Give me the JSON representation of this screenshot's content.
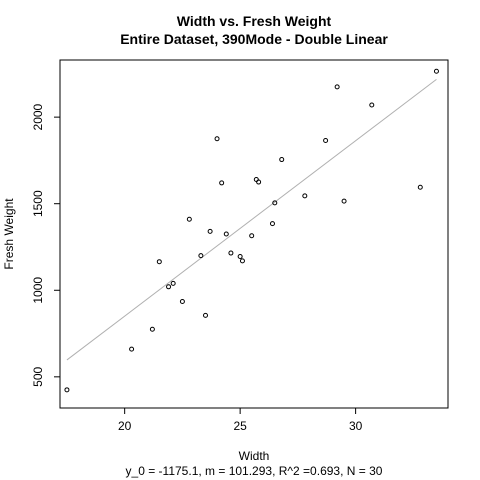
{
  "chart_data": {
    "type": "scatter",
    "title": "Width vs. Fresh Weight",
    "subtitle": "Entire Dataset, 390Mode - Double Linear",
    "xlabel": "Width",
    "ylabel": "Fresh Weight",
    "footer": "y_0 = -1175.1, m = 101.293, R^2 =0.693, N = 30",
    "xlim": [
      17.2,
      34.0
    ],
    "ylim": [
      320,
      2330
    ],
    "x_ticks": [
      20,
      25,
      30
    ],
    "y_ticks": [
      500,
      1000,
      1500,
      2000
    ],
    "grid": false,
    "point_color": "#000000",
    "fit_line_color": "#b0b0b0",
    "fit_line": {
      "intercept": -1175.1,
      "slope": 101.293,
      "x_range": [
        17.5,
        33.5
      ]
    },
    "points": [
      {
        "x": 17.5,
        "y": 425
      },
      {
        "x": 20.3,
        "y": 660
      },
      {
        "x": 21.2,
        "y": 775
      },
      {
        "x": 21.5,
        "y": 1165
      },
      {
        "x": 21.9,
        "y": 1020
      },
      {
        "x": 22.1,
        "y": 1040
      },
      {
        "x": 22.5,
        "y": 935
      },
      {
        "x": 22.8,
        "y": 1410
      },
      {
        "x": 23.3,
        "y": 1200
      },
      {
        "x": 23.5,
        "y": 855
      },
      {
        "x": 23.7,
        "y": 1340
      },
      {
        "x": 24.0,
        "y": 1875
      },
      {
        "x": 24.2,
        "y": 1620
      },
      {
        "x": 24.4,
        "y": 1325
      },
      {
        "x": 24.6,
        "y": 1215
      },
      {
        "x": 25.0,
        "y": 1195
      },
      {
        "x": 25.1,
        "y": 1170
      },
      {
        "x": 25.5,
        "y": 1315
      },
      {
        "x": 25.7,
        "y": 1640
      },
      {
        "x": 25.8,
        "y": 1625
      },
      {
        "x": 26.4,
        "y": 1385
      },
      {
        "x": 26.5,
        "y": 1505
      },
      {
        "x": 26.8,
        "y": 1755
      },
      {
        "x": 27.8,
        "y": 1545
      },
      {
        "x": 28.7,
        "y": 1865
      },
      {
        "x": 29.2,
        "y": 2175
      },
      {
        "x": 29.5,
        "y": 1515
      },
      {
        "x": 30.7,
        "y": 2070
      },
      {
        "x": 32.8,
        "y": 1595
      },
      {
        "x": 33.5,
        "y": 2265
      }
    ]
  }
}
